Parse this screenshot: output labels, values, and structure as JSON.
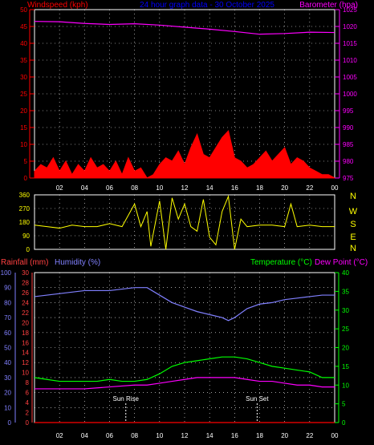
{
  "top_panel": {
    "left_title": "Windspeed (kph)",
    "center_title": "24 hour graph data - 30 October 2025",
    "right_title": "Barometer (hpa)"
  },
  "mid_panel": {
    "compass": [
      "N",
      "W",
      "S",
      "E",
      "N"
    ]
  },
  "bottom_panel": {
    "rain_title": "Rainfall (mm)",
    "humidity_title": "Humidity (%)",
    "temp_title": "Temperature (°C)",
    "dew_title": "Dew Point (°C)",
    "sunrise_label": "Sun Rise",
    "sunset_label": "Sun Set"
  },
  "x_ticks": [
    "02",
    "04",
    "06",
    "08",
    "10",
    "12",
    "14",
    "16",
    "18",
    "20",
    "22",
    "00"
  ],
  "colors": {
    "wind": "#ff0000",
    "gust_fill": "#00c000",
    "gust_line": "#ffffff",
    "baro": "#ff00ff",
    "dir": "#ffff00",
    "humidity": "#8080ff",
    "temp": "#00ff00",
    "dew": "#ff00ff",
    "rain": "#ff0000",
    "wind_axis": "#ff0000",
    "baro_axis": "#ff00ff",
    "humid_axis": "#8080ff",
    "rain_axis": "#ff4040",
    "temp_axis": "#00ff00",
    "dir_axis": "#ffff00",
    "title_blue": "#0000ff"
  },
  "chart_data": [
    {
      "type": "line",
      "title": "24 hour graph data - 30 October 2025",
      "series": [
        {
          "name": "Windspeed (kph)",
          "axis": "left",
          "ylim": [
            0,
            50
          ],
          "points": [
            [
              0,
              2
            ],
            [
              0.5,
              4
            ],
            [
              1,
              3
            ],
            [
              1.5,
              6
            ],
            [
              2,
              2
            ],
            [
              2.5,
              5
            ],
            [
              3,
              1
            ],
            [
              3.5,
              4
            ],
            [
              4,
              2
            ],
            [
              4.5,
              6
            ],
            [
              5,
              3
            ],
            [
              5.5,
              4
            ],
            [
              6,
              2
            ],
            [
              6.5,
              5
            ],
            [
              7,
              1
            ],
            [
              7.5,
              6
            ],
            [
              8,
              2
            ],
            [
              8.5,
              3
            ],
            [
              9,
              0
            ],
            [
              9.5,
              1
            ],
            [
              10,
              4
            ],
            [
              10.5,
              6
            ],
            [
              11,
              5
            ],
            [
              11.5,
              8
            ],
            [
              12,
              4
            ],
            [
              12.5,
              9
            ],
            [
              13,
              13
            ],
            [
              13.5,
              7
            ],
            [
              14,
              6
            ],
            [
              14.5,
              9
            ],
            [
              15,
              12
            ],
            [
              15.5,
              14
            ],
            [
              16,
              6
            ],
            [
              16.5,
              5
            ],
            [
              17,
              3
            ],
            [
              17.5,
              4
            ],
            [
              18,
              6
            ],
            [
              18.5,
              8
            ],
            [
              19,
              5
            ],
            [
              19.5,
              7
            ],
            [
              20,
              9
            ],
            [
              20.5,
              4
            ],
            [
              21,
              6
            ],
            [
              21.5,
              5
            ],
            [
              22,
              3
            ],
            [
              22.5,
              2
            ],
            [
              23,
              1
            ],
            [
              23.5,
              1
            ],
            [
              24,
              0
            ]
          ]
        },
        {
          "name": "Barometer (hpa)",
          "axis": "right",
          "ylim": [
            975,
            1025
          ],
          "points": [
            [
              0,
              1021.5
            ],
            [
              2,
              1021.4
            ],
            [
              4,
              1020.9
            ],
            [
              6,
              1020.6
            ],
            [
              8,
              1020.8
            ],
            [
              10,
              1020.4
            ],
            [
              12,
              1019.8
            ],
            [
              14,
              1019.2
            ],
            [
              16,
              1018.5
            ],
            [
              18,
              1017.7
            ],
            [
              20,
              1017.9
            ],
            [
              22,
              1018.3
            ],
            [
              24,
              1018.2
            ]
          ]
        }
      ]
    },
    {
      "type": "scatter",
      "title": "",
      "series": [
        {
          "name": "",
          "ylim": [
            0,
            360
          ],
          "points": [
            [
              0,
              160
            ],
            [
              1,
              150
            ],
            [
              2,
              140
            ],
            [
              3,
              160
            ],
            [
              4,
              150
            ],
            [
              5,
              150
            ],
            [
              6,
              170
            ],
            [
              7,
              150
            ],
            [
              8,
              300
            ],
            [
              8.5,
              150
            ],
            [
              9,
              250
            ],
            [
              9.3,
              20
            ],
            [
              10,
              320
            ],
            [
              10.5,
              0
            ],
            [
              11,
              340
            ],
            [
              11.5,
              200
            ],
            [
              12,
              300
            ],
            [
              12.5,
              150
            ],
            [
              13,
              120
            ],
            [
              13.5,
              330
            ],
            [
              14,
              80
            ],
            [
              14.5,
              30
            ],
            [
              15,
              250
            ],
            [
              15.5,
              350
            ],
            [
              16,
              0
            ],
            [
              16.5,
              200
            ],
            [
              17,
              150
            ],
            [
              18,
              160
            ],
            [
              19,
              160
            ],
            [
              20,
              150
            ],
            [
              20.5,
              300
            ],
            [
              21,
              150
            ],
            [
              22,
              160
            ],
            [
              23,
              150
            ],
            [
              24,
              150
            ]
          ]
        }
      ]
    },
    {
      "type": "line",
      "title": "",
      "series": [
        {
          "name": "Humidity (%)",
          "axis": "left",
          "ylim": [
            0,
            100
          ],
          "points": [
            [
              0,
              84
            ],
            [
              2,
              86
            ],
            [
              4,
              88
            ],
            [
              6,
              88
            ],
            [
              8,
              90
            ],
            [
              9,
              90
            ],
            [
              10,
              85
            ],
            [
              11,
              80
            ],
            [
              12,
              77
            ],
            [
              13,
              74
            ],
            [
              14,
              72
            ],
            [
              15,
              70
            ],
            [
              15.5,
              68
            ],
            [
              16,
              70
            ],
            [
              16.5,
              73
            ],
            [
              17,
              76
            ],
            [
              18,
              79
            ],
            [
              19,
              80
            ],
            [
              20,
              82
            ],
            [
              21,
              83
            ],
            [
              22,
              84
            ],
            [
              23,
              85
            ],
            [
              24,
              85
            ]
          ]
        },
        {
          "name": "Temperature (°C)",
          "axis": "right",
          "ylim": [
            0,
            40
          ],
          "points": [
            [
              0,
              12
            ],
            [
              1,
              11.5
            ],
            [
              2,
              11
            ],
            [
              3,
              11
            ],
            [
              4,
              11
            ],
            [
              5,
              11
            ],
            [
              6,
              11.5
            ],
            [
              7,
              11
            ],
            [
              8,
              11
            ],
            [
              9,
              11.5
            ],
            [
              10,
              13
            ],
            [
              11,
              15
            ],
            [
              12,
              16
            ],
            [
              13,
              16.5
            ],
            [
              14,
              17
            ],
            [
              15,
              17.5
            ],
            [
              16,
              17.5
            ],
            [
              17,
              17
            ],
            [
              18,
              16
            ],
            [
              19,
              15
            ],
            [
              20,
              14.5
            ],
            [
              21,
              14
            ],
            [
              22,
              13.5
            ],
            [
              23,
              12
            ],
            [
              24,
              12
            ]
          ]
        },
        {
          "name": "Dew Point (°C)",
          "axis": "right",
          "ylim": [
            0,
            40
          ],
          "points": [
            [
              0,
              9
            ],
            [
              2,
              9
            ],
            [
              4,
              9
            ],
            [
              6,
              9.5
            ],
            [
              8,
              10
            ],
            [
              9,
              10
            ],
            [
              10,
              10.5
            ],
            [
              11,
              11
            ],
            [
              12,
              11.5
            ],
            [
              13,
              12
            ],
            [
              14,
              12
            ],
            [
              15,
              12
            ],
            [
              16,
              12
            ],
            [
              17,
              11.5
            ],
            [
              18,
              11
            ],
            [
              19,
              11
            ],
            [
              20,
              10.5
            ],
            [
              21,
              10
            ],
            [
              22,
              10
            ],
            [
              23,
              9.5
            ],
            [
              24,
              9.5
            ]
          ]
        },
        {
          "name": "Rainfall (mm)",
          "axis": "left-inner",
          "ylim": [
            0,
            30
          ],
          "points": [
            [
              0,
              0
            ],
            [
              24,
              0
            ]
          ]
        }
      ]
    }
  ],
  "top_panel_axes": {
    "wind_ticks": [
      "0",
      "5",
      "10",
      "15",
      "20",
      "25",
      "30",
      "35",
      "40",
      "45",
      "50"
    ],
    "baro_ticks": [
      "975",
      "980",
      "985",
      "990",
      "995",
      "1000",
      "1005",
      "1010",
      "1015",
      "1020",
      "1025"
    ]
  },
  "mid_panel_axes": {
    "dir_ticks": [
      "0",
      "90",
      "180",
      "270",
      "360"
    ]
  },
  "bottom_panel_axes": {
    "humidity_ticks": [
      "0",
      "10",
      "20",
      "30",
      "40",
      "50",
      "60",
      "70",
      "80",
      "90",
      "100"
    ],
    "rain_ticks": [
      "0",
      "2",
      "4",
      "6",
      "8",
      "10",
      "12",
      "14",
      "16",
      "18",
      "20",
      "22",
      "24",
      "26",
      "28",
      "30"
    ],
    "temp_ticks": [
      "0",
      "5",
      "10",
      "15",
      "20",
      "25",
      "30",
      "35",
      "40"
    ]
  },
  "sun_events": {
    "sunrise_hour": 7.3,
    "sunset_hour": 17.8
  }
}
